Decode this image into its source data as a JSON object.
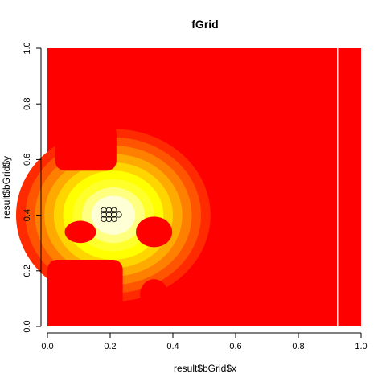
{
  "chart_data": {
    "type": "heatmap",
    "title": "fGrid",
    "xlabel": "result$bGrid$x",
    "ylabel": "result$bGrid$y",
    "xlim": [
      0,
      1
    ],
    "ylim": [
      0,
      1
    ],
    "x_ticks": [
      "0.0",
      "0.2",
      "0.4",
      "0.6",
      "0.8",
      "1.0"
    ],
    "y_ticks": [
      "0.0",
      "0.2",
      "0.4",
      "0.6",
      "0.8",
      "1.0"
    ],
    "grid": false,
    "palette": [
      "#ff0000",
      "#ff2a00",
      "#ff5500",
      "#ff8000",
      "#ffaa00",
      "#ffd500",
      "#ffff00",
      "#ffff2a",
      "#ffff80",
      "#ffffd5"
    ],
    "field": {
      "peak": {
        "x": 0.21,
        "y": 0.4
      },
      "radius_levels": [
        0.07,
        0.1,
        0.13,
        0.16,
        0.19,
        0.22,
        0.25,
        0.28,
        0.31
      ]
    },
    "red_regions": [
      {
        "shape": "rect",
        "x": [
          0.0,
          0.24
        ],
        "y": [
          0.82,
          1.0
        ]
      },
      {
        "shape": "rect",
        "x": [
          0.26,
          0.44
        ],
        "y": [
          0.82,
          1.0
        ]
      },
      {
        "shape": "rect",
        "x": [
          0.025,
          0.22
        ],
        "y": [
          0.56,
          0.73
        ]
      },
      {
        "shape": "rect",
        "x": [
          0.0,
          0.24
        ],
        "y": [
          0.0,
          0.24
        ]
      },
      {
        "shape": "rect",
        "x": [
          0.6,
          1.0
        ],
        "y": [
          0.0,
          1.0
        ]
      },
      {
        "shape": "ellipse",
        "cx": 0.105,
        "cy": 0.34,
        "rx": 0.05,
        "ry": 0.04
      },
      {
        "shape": "ellipse",
        "cx": 0.34,
        "cy": 0.34,
        "rx": 0.058,
        "ry": 0.055
      },
      {
        "shape": "ellipse",
        "cx": 0.34,
        "cy": 0.115,
        "rx": 0.045,
        "ry": 0.055
      }
    ],
    "vline_x": 0.925,
    "points": [
      {
        "x": 0.18,
        "y": 0.418
      },
      {
        "x": 0.196,
        "y": 0.418
      },
      {
        "x": 0.212,
        "y": 0.418
      },
      {
        "x": 0.18,
        "y": 0.402
      },
      {
        "x": 0.196,
        "y": 0.402
      },
      {
        "x": 0.212,
        "y": 0.402
      },
      {
        "x": 0.228,
        "y": 0.402
      },
      {
        "x": 0.18,
        "y": 0.386
      },
      {
        "x": 0.196,
        "y": 0.386
      },
      {
        "x": 0.212,
        "y": 0.386
      }
    ]
  }
}
